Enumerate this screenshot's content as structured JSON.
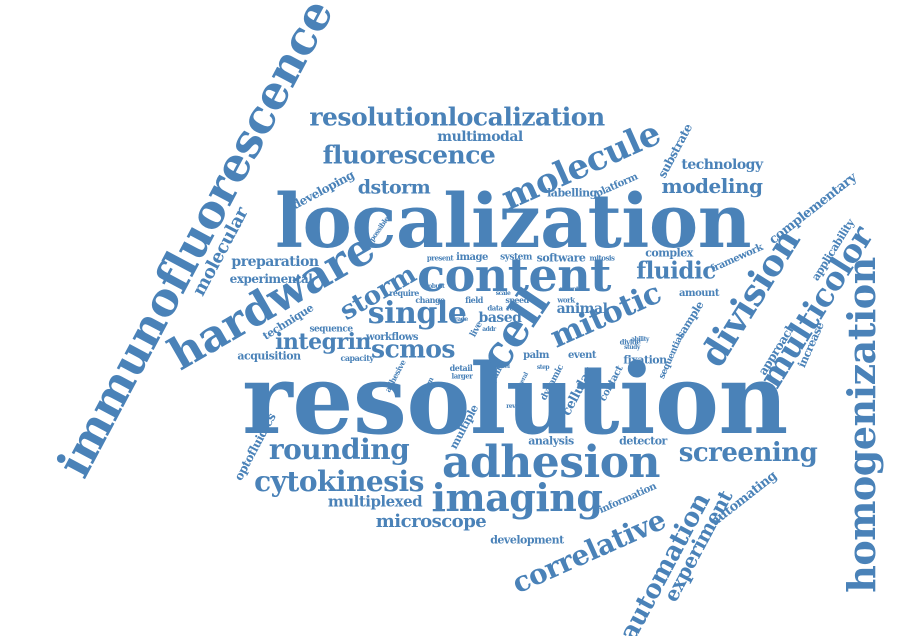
{
  "color": "#4a82b8",
  "words": {
    "resolution": "resolution",
    "localization": "localization",
    "immunofluorescence": "immunofluorescence",
    "homogenization": "homogenization",
    "content": "content",
    "adhesion": "adhesion",
    "hardware": "hardware",
    "imaging": "imaging",
    "resolutionlocalization": "resolutionlocalization",
    "fluorescence": "fluorescence",
    "molecule": "molecule",
    "division": "division",
    "multicolor": "multicolor",
    "mitotic": "mitotic",
    "cell": "cell",
    "single": "single",
    "storm": "storm",
    "scmos": "scmos",
    "integrin": "integrin",
    "rounding": "rounding",
    "screening": "screening",
    "cytokinesis": "cytokinesis",
    "correlative": "correlative",
    "automation": "automation",
    "experiment": "experiment",
    "fluidic": "fluidic",
    "modeling": "modeling",
    "dstorm": "dstorm",
    "multimodal": "multimodal",
    "microscope": "microscope",
    "multiplexed": "multiplexed",
    "molecular": "molecular",
    "technology": "technology",
    "substrate": "substrate",
    "complementary": "complementary",
    "applicability": "applicability",
    "developing": "developing",
    "preparation": "preparation",
    "experimental": "experimental",
    "technique": "technique",
    "acquisition": "acquisition",
    "sequence": "sequence",
    "workflows": "workflows",
    "optofluidics": "optofluidics",
    "analysis": "analysis",
    "detector": "detector",
    "development": "development",
    "automating": "automating",
    "information": "information",
    "labelling": "labelling",
    "platform": "platform",
    "complex": "complex",
    "framework": "framework",
    "software": "software",
    "image": "image",
    "present": "present",
    "system": "system",
    "mitosis": "mitosis",
    "based": "based",
    "animal": "animal",
    "amount": "amount",
    "sample": "sample",
    "approach": "approach",
    "increase": "increase",
    "sequential": "sequential",
    "fixation": "fixation",
    "cellular": "cellular",
    "contact": "contact",
    "dynamic": "dynamic",
    "palm": "palm",
    "event": "event",
    "paint": "paint",
    "multiple": "multiple",
    "design": "design",
    "adhesive": "adhesive",
    "detail": "detail",
    "larger": "larger",
    "capacity": "capacity",
    "change": "change",
    "require": "require",
    "robust": "robust",
    "possible": "possible",
    "field": "field",
    "scale": "scale",
    "speed": "speed",
    "data": "data",
    "role": "role",
    "addr": "addr",
    "live": "live",
    "work": "work",
    "recent": "recent",
    "ability": "ability",
    "study": "study",
    "divide": "divide",
    "trade": "trade",
    "level": "level",
    "step": "step",
    "reveal": "reveal",
    "general": "general"
  }
}
